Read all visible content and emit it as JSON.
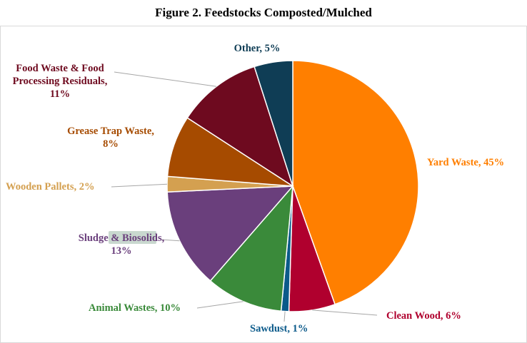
{
  "title": "Figure 2. Feedstocks Composted/Mulched",
  "chart_data": {
    "type": "pie",
    "title": "Figure 2. Feedstocks Composted/Mulched",
    "unit": "%",
    "slices": [
      {
        "name": "Yard Waste",
        "value": 45,
        "color": "#FF7F00",
        "label": "Yard Waste, 45%"
      },
      {
        "name": "Clean Wood",
        "value": 6,
        "color": "#B0002E",
        "label": "Clean Wood, 6%"
      },
      {
        "name": "Sawdust",
        "value": 1,
        "color": "#0B5A8A",
        "label": "Sawdust, 1%"
      },
      {
        "name": "Animal Wastes",
        "value": 10,
        "color": "#3A8A3A",
        "label": "Animal Wastes, 10%"
      },
      {
        "name": "Sludge & Biosolids",
        "value": 13,
        "color": "#6A3F7C",
        "label": "Sludge & Biosolids, 13%"
      },
      {
        "name": "Wooden Pallets",
        "value": 2,
        "color": "#D4A050",
        "label": "Wooden Pallets, 2%"
      },
      {
        "name": "Grease Trap Waste",
        "value": 8,
        "color": "#A64B00",
        "label": "Grease Trap Waste, 8%"
      },
      {
        "name": "Food Waste & Food Processing Residuals",
        "value": 11,
        "color": "#6E0A1F",
        "label": "Food Waste & Food Processing Residuals, 11%"
      },
      {
        "name": "Other",
        "value": 5,
        "color": "#0F3D55",
        "label": "Other, 5%"
      }
    ],
    "label_colors": {
      "Yard Waste": "#FF7F00",
      "Clean Wood": "#B0002E",
      "Sawdust": "#0B5A8A",
      "Animal Wastes": "#3A8A3A",
      "Sludge & Biosolids": "#6A3F7C",
      "Wooden Pallets": "#D4A050",
      "Grease Trap Waste": "#A64B00",
      "Food Waste & Food Processing Residuals": "#6E0A1F",
      "Other": "#0F3D55"
    },
    "leader_line_color": "#A6A6A6",
    "legend": "none"
  }
}
